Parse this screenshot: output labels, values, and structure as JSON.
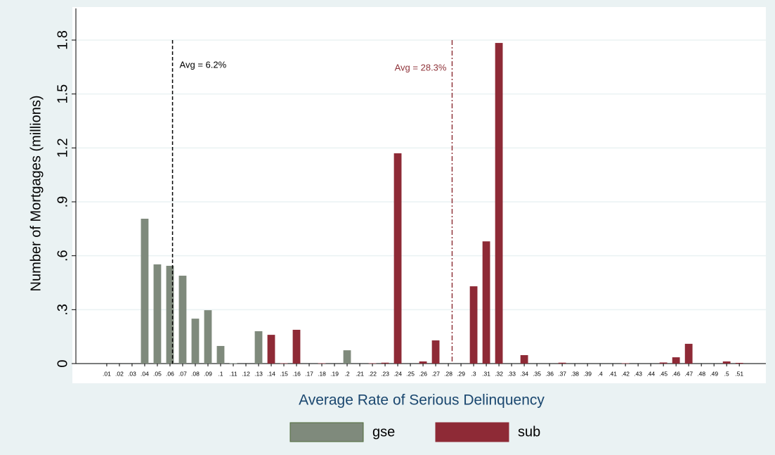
{
  "chart_data": {
    "type": "bar",
    "x_label": "Average Rate of Serious Delinquency",
    "y_label": "Number of Mortgages (millions)",
    "x": [
      0.01,
      0.02,
      0.03,
      0.04,
      0.05,
      0.06,
      0.07,
      0.08,
      0.09,
      0.1,
      0.11,
      0.12,
      0.13,
      0.14,
      0.15,
      0.16,
      0.17,
      0.18,
      0.19,
      0.2,
      0.21,
      0.22,
      0.23,
      0.24,
      0.25,
      0.26,
      0.27,
      0.28,
      0.29,
      0.3,
      0.31,
      0.32,
      0.33,
      0.34,
      0.35,
      0.36,
      0.37,
      0.38,
      0.39,
      0.4,
      0.41,
      0.42,
      0.43,
      0.44,
      0.45,
      0.46,
      0.47,
      0.48,
      0.49,
      0.5,
      0.51
    ],
    "series": [
      {
        "name": "gse",
        "color": "#7f8a7c",
        "values": [
          null,
          null,
          null,
          0.806,
          0.552,
          0.544,
          0.489,
          0.25,
          0.297,
          0.098,
          0.002,
          null,
          0.18,
          null,
          null,
          null,
          null,
          null,
          null,
          0.074,
          null,
          null,
          null,
          null,
          null,
          null,
          null,
          null,
          null,
          null,
          null,
          null,
          null,
          null,
          null,
          null,
          null,
          null,
          null,
          null,
          null,
          null,
          null,
          null,
          null,
          null,
          null,
          null,
          null,
          null,
          null
        ]
      },
      {
        "name": "sub",
        "color": "#8e2a36",
        "values": [
          null,
          null,
          null,
          null,
          null,
          null,
          null,
          null,
          null,
          null,
          null,
          null,
          null,
          0.16,
          0.002,
          0.188,
          null,
          0.002,
          null,
          null,
          null,
          0.002,
          0.005,
          1.17,
          null,
          0.012,
          0.129,
          null,
          null,
          0.43,
          0.68,
          1.784,
          null,
          0.047,
          null,
          null,
          0.005,
          null,
          null,
          null,
          null,
          0.002,
          null,
          null,
          0.006,
          0.035,
          0.11,
          null,
          null,
          0.012,
          0.004
        ]
      }
    ],
    "xlim": [
      -0.0144,
      0.531
    ],
    "xticks": [
      {
        "value": 0.01,
        "label": ".01"
      },
      {
        "value": 0.02,
        "label": ".02"
      },
      {
        "value": 0.03,
        "label": ".03"
      },
      {
        "value": 0.04,
        "label": ".04"
      },
      {
        "value": 0.05,
        "label": ".05"
      },
      {
        "value": 0.06,
        "label": ".06"
      },
      {
        "value": 0.07,
        "label": ".07"
      },
      {
        "value": 0.08,
        "label": ".08"
      },
      {
        "value": 0.09,
        "label": ".09"
      },
      {
        "value": 0.1,
        "label": ".1"
      },
      {
        "value": 0.11,
        "label": ".11"
      },
      {
        "value": 0.12,
        "label": ".12"
      },
      {
        "value": 0.13,
        "label": ".13"
      },
      {
        "value": 0.14,
        "label": ".14"
      },
      {
        "value": 0.15,
        "label": ".15"
      },
      {
        "value": 0.16,
        "label": ".16"
      },
      {
        "value": 0.17,
        "label": ".17"
      },
      {
        "value": 0.18,
        "label": ".18"
      },
      {
        "value": 0.19,
        "label": ".19"
      },
      {
        "value": 0.2,
        "label": ".2"
      },
      {
        "value": 0.21,
        "label": ".21"
      },
      {
        "value": 0.22,
        "label": ".22"
      },
      {
        "value": 0.23,
        "label": ".23"
      },
      {
        "value": 0.24,
        "label": ".24"
      },
      {
        "value": 0.25,
        "label": ".25"
      },
      {
        "value": 0.26,
        "label": ".26"
      },
      {
        "value": 0.27,
        "label": ".27"
      },
      {
        "value": 0.28,
        "label": ".28"
      },
      {
        "value": 0.29,
        "label": ".29"
      },
      {
        "value": 0.3,
        "label": ".3"
      },
      {
        "value": 0.31,
        "label": ".31"
      },
      {
        "value": 0.32,
        "label": ".32"
      },
      {
        "value": 0.33,
        "label": ".33"
      },
      {
        "value": 0.34,
        "label": ".34"
      },
      {
        "value": 0.35,
        "label": ".35"
      },
      {
        "value": 0.36,
        "label": ".36"
      },
      {
        "value": 0.37,
        "label": ".37"
      },
      {
        "value": 0.38,
        "label": ".38"
      },
      {
        "value": 0.39,
        "label": ".39"
      },
      {
        "value": 0.4,
        "label": ".4"
      },
      {
        "value": 0.41,
        "label": ".41"
      },
      {
        "value": 0.42,
        "label": ".42"
      },
      {
        "value": 0.43,
        "label": ".43"
      },
      {
        "value": 0.44,
        "label": ".44"
      },
      {
        "value": 0.45,
        "label": ".45"
      },
      {
        "value": 0.46,
        "label": ".46"
      },
      {
        "value": 0.47,
        "label": ".47"
      },
      {
        "value": 0.48,
        "label": ".48"
      },
      {
        "value": 0.49,
        "label": ".49"
      },
      {
        "value": 0.5,
        "label": ".5"
      },
      {
        "value": 0.51,
        "label": ".51"
      }
    ],
    "ylim": [
      0,
      1.976
    ],
    "yticks": [
      0,
      {
        "value": 0.3,
        "label": ".3"
      },
      {
        "value": 0.6,
        "label": ".6"
      },
      {
        "value": 0.9,
        "label": ".9"
      },
      1.2,
      1.5,
      1.8
    ],
    "grid": true,
    "legend": "bottom",
    "annotations": [
      {
        "x": 0.062,
        "label": "Avg = 6.2%",
        "color": "#000000"
      },
      {
        "x": 0.283,
        "label": "Avg = 28.3%",
        "color": "#90353b"
      }
    ]
  }
}
